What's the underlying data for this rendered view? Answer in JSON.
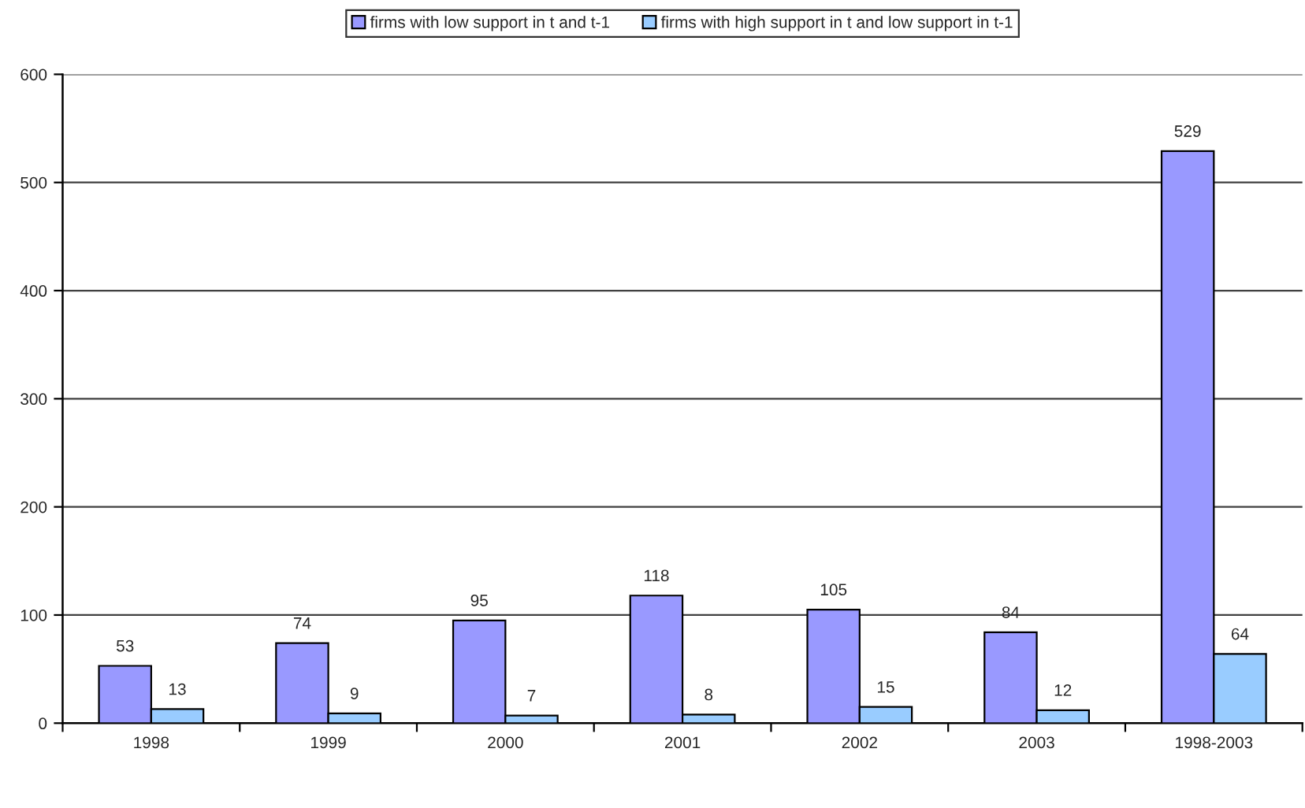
{
  "chart_data": {
    "type": "bar",
    "categories": [
      "1998",
      "1999",
      "2000",
      "2001",
      "2002",
      "2003",
      "1998-2003"
    ],
    "series": [
      {
        "name": "firms with low support in t and t-1",
        "color": "#9999ff",
        "values": [
          53,
          74,
          95,
          118,
          105,
          84,
          529
        ]
      },
      {
        "name": "firms with high support in t and low support in t-1",
        "color": "#99ccff",
        "values": [
          13,
          9,
          7,
          8,
          15,
          12,
          64
        ]
      }
    ],
    "ylim": [
      0,
      600
    ],
    "yticks": [
      0,
      100,
      200,
      300,
      400,
      500,
      600
    ],
    "grid": "y",
    "legend": "top",
    "data_labels": true
  }
}
